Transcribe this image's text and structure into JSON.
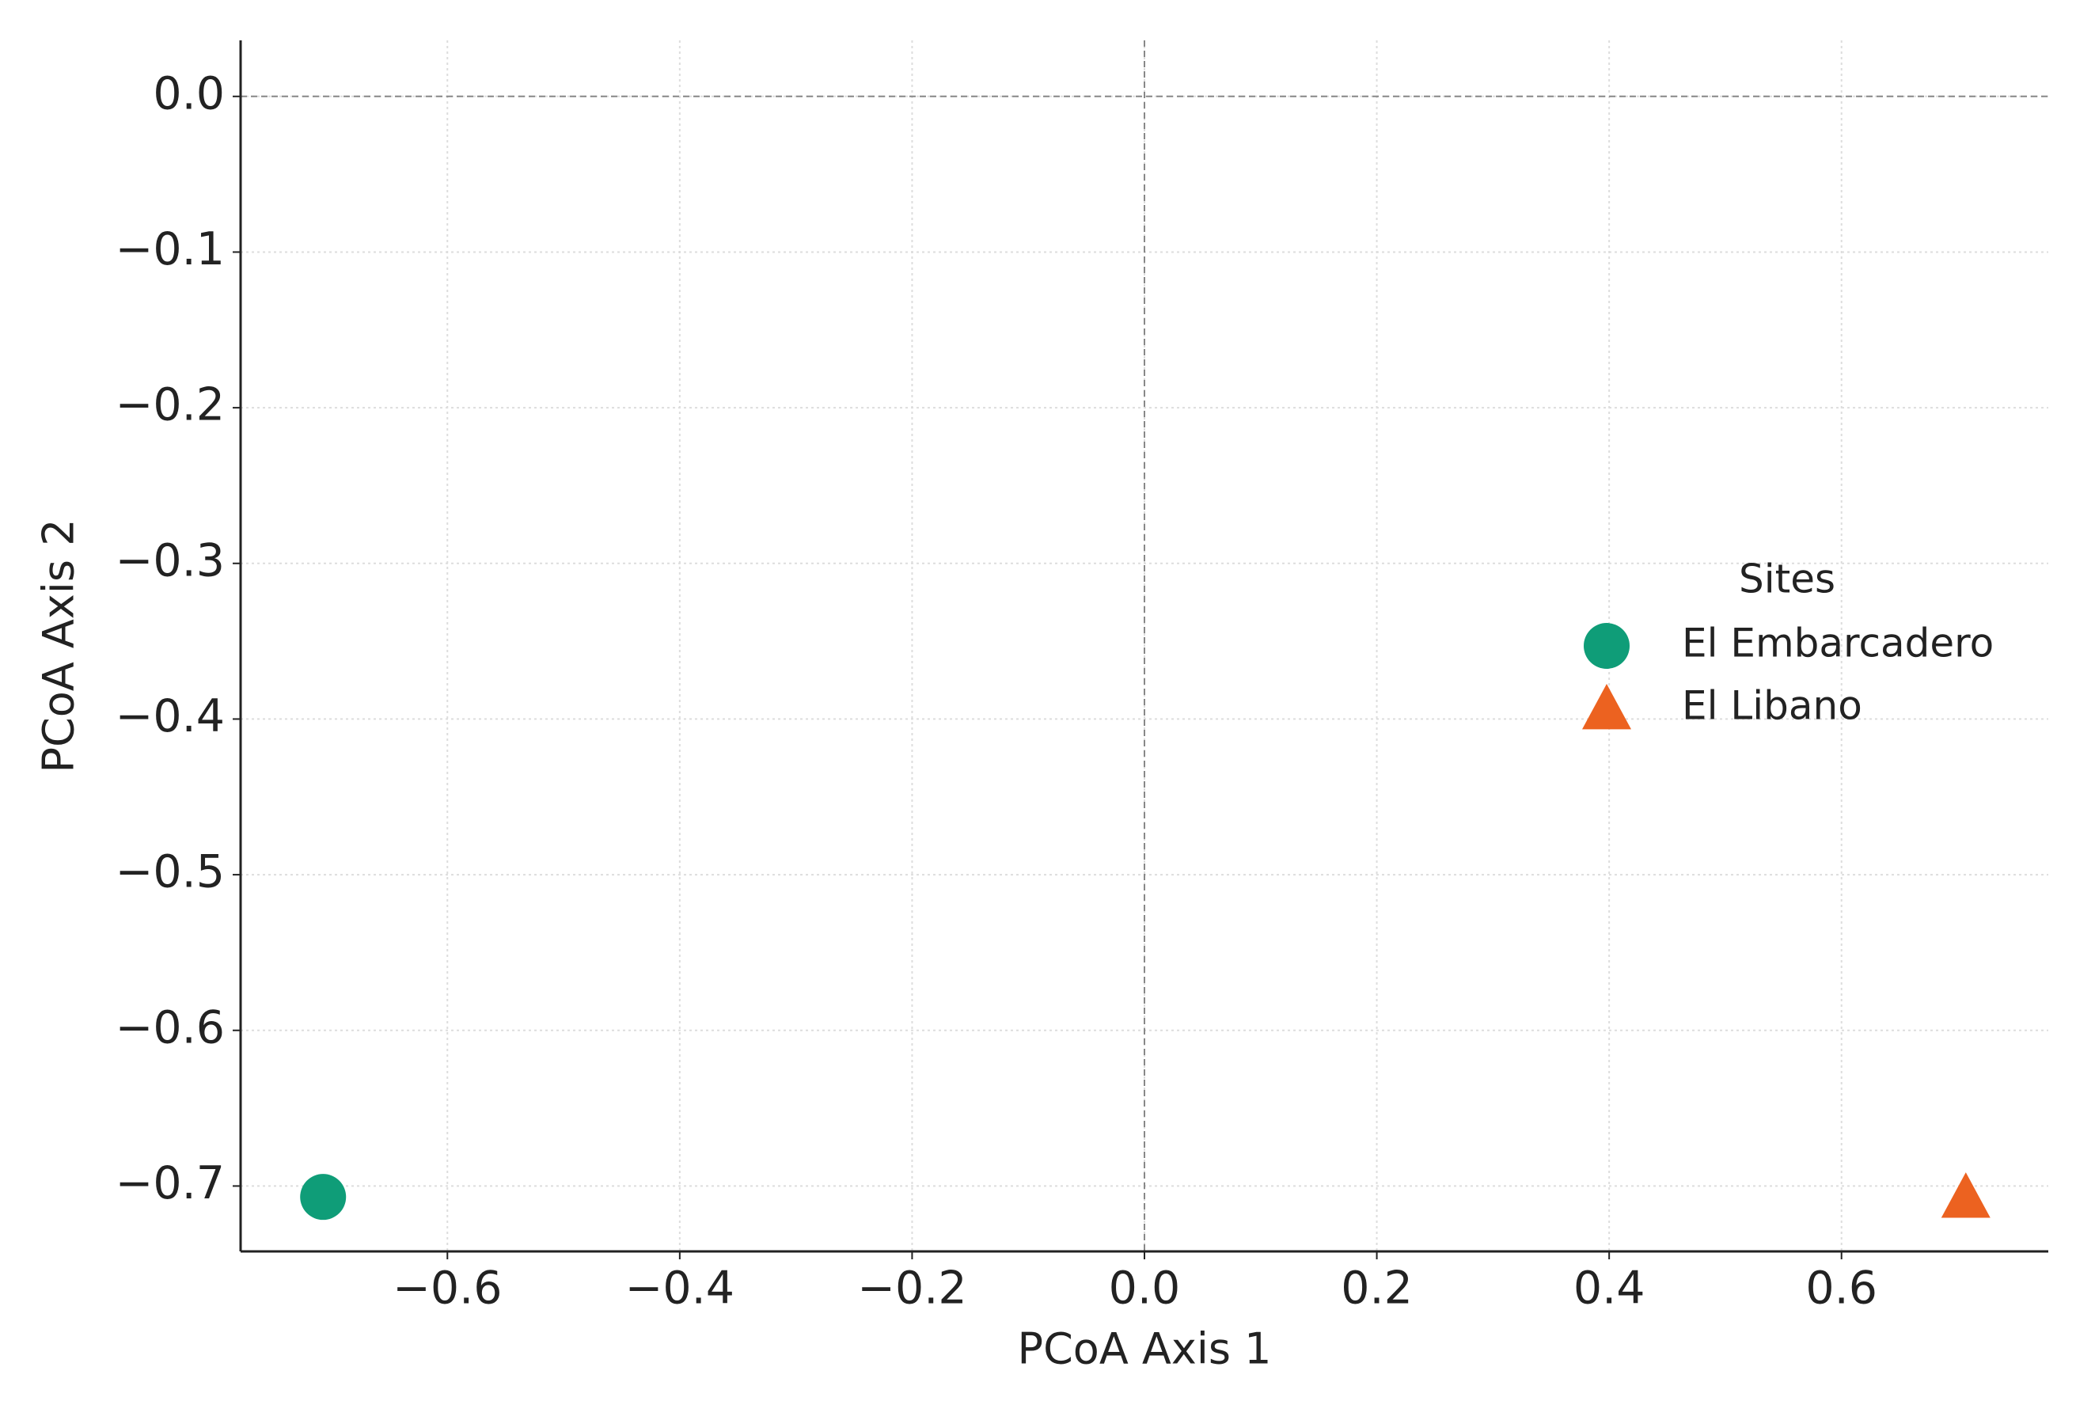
{
  "chart_data": {
    "type": "scatter",
    "x_label": "PCoA Axis 1",
    "y_label": "PCoA Axis 2",
    "legend_title": "Sites",
    "legend_position": "center right",
    "grid": true,
    "zero_lines": true,
    "xlim": [
      -0.778,
      0.778
    ],
    "ylim": [
      -0.742,
      0.036
    ],
    "xticks": [
      {
        "value": -0.6,
        "label": "−0.6"
      },
      {
        "value": -0.4,
        "label": "−0.4"
      },
      {
        "value": -0.2,
        "label": "−0.2"
      },
      {
        "value": 0,
        "label": "0.0"
      },
      {
        "value": 0.2,
        "label": "0.2"
      },
      {
        "value": 0.4,
        "label": "0.4"
      },
      {
        "value": 0.6,
        "label": "0.6"
      }
    ],
    "yticks": [
      {
        "value": 0,
        "label": "0.0"
      },
      {
        "value": -0.1,
        "label": "−0.1"
      },
      {
        "value": -0.2,
        "label": "−0.2"
      },
      {
        "value": -0.3,
        "label": "−0.3"
      },
      {
        "value": -0.4,
        "label": "−0.4"
      },
      {
        "value": -0.5,
        "label": "−0.5"
      },
      {
        "value": -0.6,
        "label": "−0.6"
      },
      {
        "value": -0.7,
        "label": "−0.7"
      }
    ],
    "series": [
      {
        "name": "El Embarcadero",
        "color": "#0f9d78",
        "marker": "circle",
        "x": [
          -0.707
        ],
        "values": [
          -0.707
        ]
      },
      {
        "name": "El Libano",
        "color": "#ec6220",
        "marker": "triangle",
        "x": [
          0.707
        ],
        "values": [
          -0.707
        ]
      }
    ]
  }
}
